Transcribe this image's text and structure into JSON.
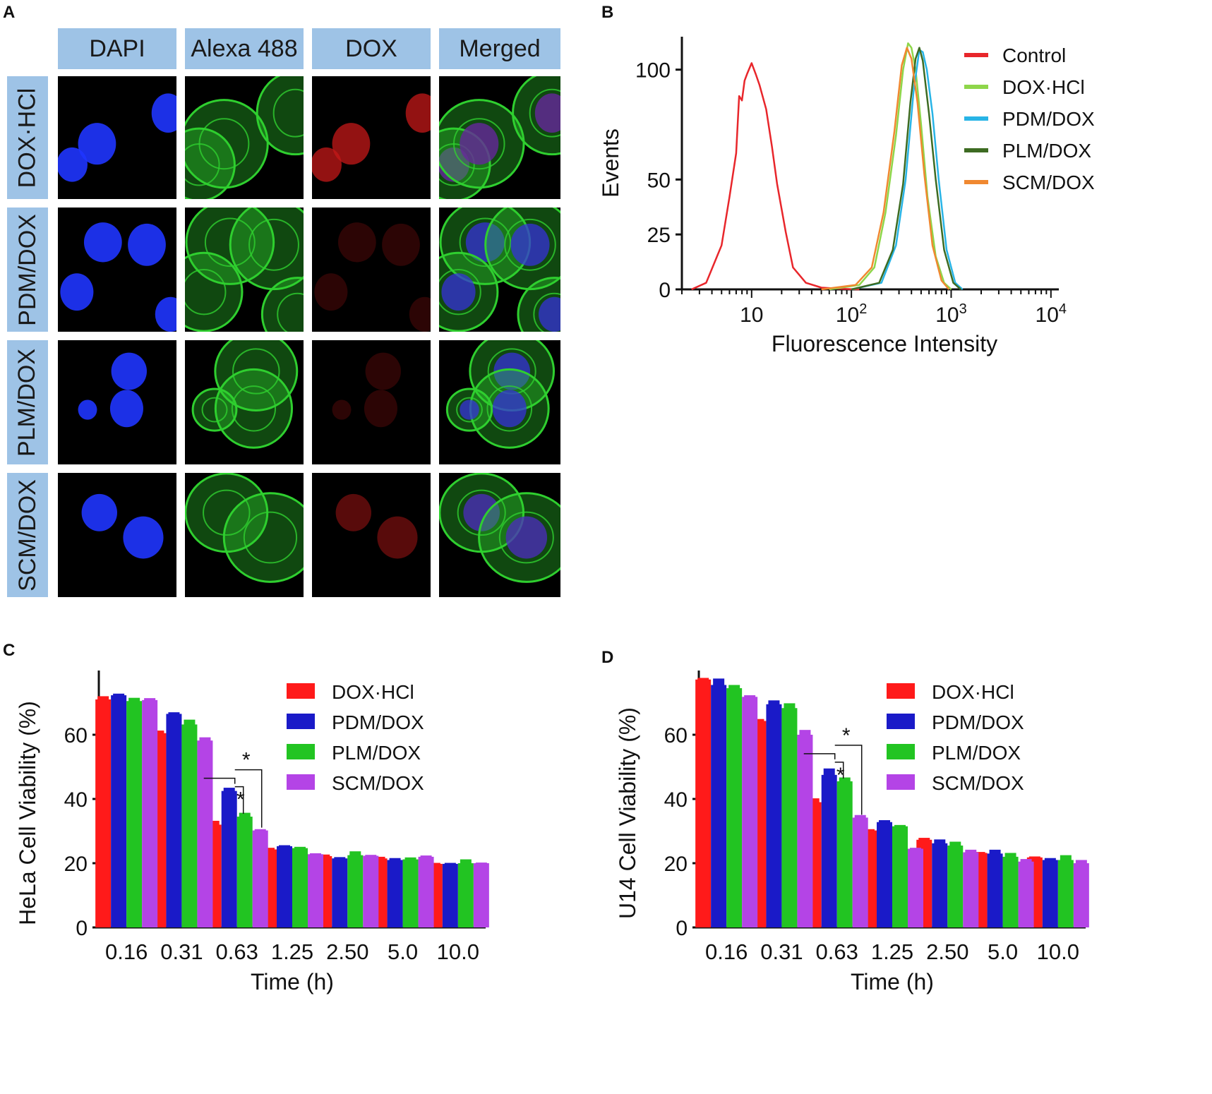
{
  "panel_a": {
    "letter": "A",
    "channels": [
      "DAPI",
      "Alexa 488",
      "DOX",
      "Merged"
    ],
    "rows": [
      "DOX·HCl",
      "PDM/DOX",
      "PLM/DOX",
      "SCM/DOX"
    ],
    "colors": {
      "header_bg": "#9ec3e6",
      "dapi": "#1f35ff",
      "alexa": "#2fcf2f",
      "dox": "#c41818"
    },
    "dox_intensity": [
      1.0,
      0.3,
      0.3,
      0.6
    ]
  },
  "panel_b": {
    "letter": "B"
  },
  "panel_c": {
    "letter": "C"
  },
  "panel_d": {
    "letter": "D"
  },
  "chart_data": [
    {
      "type": "line",
      "panel": "B",
      "xlabel": "Fluorescence Intensity",
      "ylabel": "Events",
      "xscale": "log",
      "xlim": [
        2,
        12000
      ],
      "ylim": [
        0,
        115
      ],
      "xticks": [
        {
          "v": 10,
          "b": "10",
          "e": ""
        },
        {
          "v": 100,
          "b": "10",
          "e": "2"
        },
        {
          "v": 1000,
          "b": "10",
          "e": "3"
        },
        {
          "v": 10000,
          "b": "10",
          "e": "4"
        }
      ],
      "yticks": [
        0,
        25,
        50,
        100
      ],
      "legend_position": "top-right",
      "series": [
        {
          "name": "Control",
          "color": "#e8262b",
          "x": [
            2.5,
            3.5,
            5,
            6,
            7,
            7.5,
            8,
            8.5,
            9,
            10,
            11,
            12,
            14,
            16,
            18,
            22,
            26,
            35,
            50,
            80,
            120
          ],
          "y": [
            0,
            3,
            20,
            42,
            62,
            88,
            86,
            95,
            98,
            103,
            98,
            93,
            82,
            65,
            48,
            26,
            10,
            3,
            0.8,
            0.3,
            0
          ]
        },
        {
          "name": "DOX·HCl",
          "color": "#8ed64a",
          "x": [
            60,
            120,
            170,
            220,
            280,
            330,
            370,
            400,
            440,
            500,
            580,
            700,
            850,
            1000
          ],
          "y": [
            0,
            2,
            10,
            35,
            70,
            100,
            112,
            110,
            100,
            75,
            42,
            15,
            3,
            0
          ]
        },
        {
          "name": "PDM/DOX",
          "color": "#28b4e6",
          "x": [
            100,
            200,
            280,
            350,
            420,
            480,
            520,
            570,
            650,
            750,
            900,
            1100,
            1300
          ],
          "y": [
            0,
            3,
            20,
            50,
            90,
            109,
            108,
            100,
            80,
            50,
            18,
            3,
            0
          ]
        },
        {
          "name": "PLM/DOX",
          "color": "#3d6b22",
          "x": [
            100,
            190,
            260,
            330,
            390,
            440,
            480,
            520,
            600,
            700,
            850,
            1050,
            1250
          ],
          "y": [
            0,
            3,
            18,
            48,
            85,
            105,
            110,
            104,
            80,
            50,
            18,
            3,
            0
          ]
        },
        {
          "name": "SCM/DOX",
          "color": "#f08830",
          "x": [
            50,
            110,
            160,
            210,
            270,
            320,
            360,
            400,
            460,
            540,
            650,
            800,
            950
          ],
          "y": [
            0,
            2,
            10,
            35,
            72,
            102,
            110,
            105,
            85,
            52,
            20,
            4,
            0
          ]
        }
      ]
    },
    {
      "type": "bar",
      "panel": "C",
      "xlabel": "Time (h)",
      "ylabel": "HeLa Cell Viability (%)",
      "ylim": [
        0,
        80
      ],
      "yticks": [
        0,
        20,
        40,
        60
      ],
      "categories": [
        "0.16",
        "0.31",
        "0.63",
        "1.25",
        "2.50",
        "5.0",
        "10.0"
      ],
      "legend_position": "top-right",
      "series": [
        {
          "name": "DOX·HCl",
          "color": "#ff1a1a",
          "values": [
            71,
            60.5,
            32,
            24.3,
            22.2,
            21.5,
            19.8
          ],
          "errors": [
            1,
            0.8,
            1.2,
            0.5,
            0.5,
            0.5,
            0.3
          ]
        },
        {
          "name": "PDM/DOX",
          "color": "#1a1ac8",
          "values": [
            72.3,
            66.5,
            42.5,
            25.3,
            21.5,
            21,
            19.8
          ],
          "errors": [
            0.5,
            0.5,
            1,
            0.3,
            0.4,
            0.6,
            0.3
          ]
        },
        {
          "name": "PLM/DOX",
          "color": "#22c422",
          "values": [
            70.5,
            63.2,
            34.5,
            24.7,
            22.5,
            21.2,
            20
          ],
          "errors": [
            1,
            1.5,
            1.2,
            0.4,
            1.2,
            0.6,
            1.2
          ]
        },
        {
          "name": "SCM/DOX",
          "color": "#b444e6",
          "values": [
            70.8,
            58.2,
            30.2,
            22.8,
            22.3,
            22,
            20
          ],
          "errors": [
            0.6,
            1,
            0.4,
            0.3,
            0.3,
            0.4,
            0.2
          ]
        }
      ],
      "annotations": [
        "*",
        "*"
      ]
    },
    {
      "type": "bar",
      "panel": "D",
      "xlabel": "Time (h)",
      "ylabel": "U14 Cell Viability (%)",
      "ylim": [
        0,
        80
      ],
      "yticks": [
        0,
        20,
        40,
        60
      ],
      "categories": [
        "0.16",
        "0.31",
        "0.63",
        "1.25",
        "2.50",
        "5.0",
        "10.0"
      ],
      "legend_position": "top-right",
      "series": [
        {
          "name": "DOX·HCl",
          "color": "#ff1a1a",
          "values": [
            77.2,
            64.3,
            39,
            30.2,
            27.3,
            23.2,
            21.8
          ],
          "errors": [
            0.5,
            0.6,
            1.2,
            0.4,
            0.6,
            0.3,
            0.3
          ]
        },
        {
          "name": "PDM/DOX",
          "color": "#1a1ac8",
          "values": [
            75.5,
            69.5,
            47.5,
            32.8,
            26.2,
            23,
            21
          ],
          "errors": [
            2,
            1.2,
            2,
            0.6,
            1.2,
            1.2,
            0.6
          ]
        },
        {
          "name": "PLM/DOX",
          "color": "#22c422",
          "values": [
            74.5,
            68.3,
            45.5,
            31.5,
            25.5,
            22,
            21
          ],
          "errors": [
            1,
            1.5,
            1.2,
            0.4,
            1.2,
            1.2,
            1.5
          ]
        },
        {
          "name": "SCM/DOX",
          "color": "#b444e6",
          "values": [
            71.8,
            60,
            34.2,
            24.5,
            23.4,
            20.5,
            20
          ],
          "errors": [
            0.5,
            1.5,
            0.8,
            0.3,
            0.8,
            0.8,
            1
          ]
        }
      ],
      "annotations": [
        "*",
        "*"
      ]
    }
  ]
}
